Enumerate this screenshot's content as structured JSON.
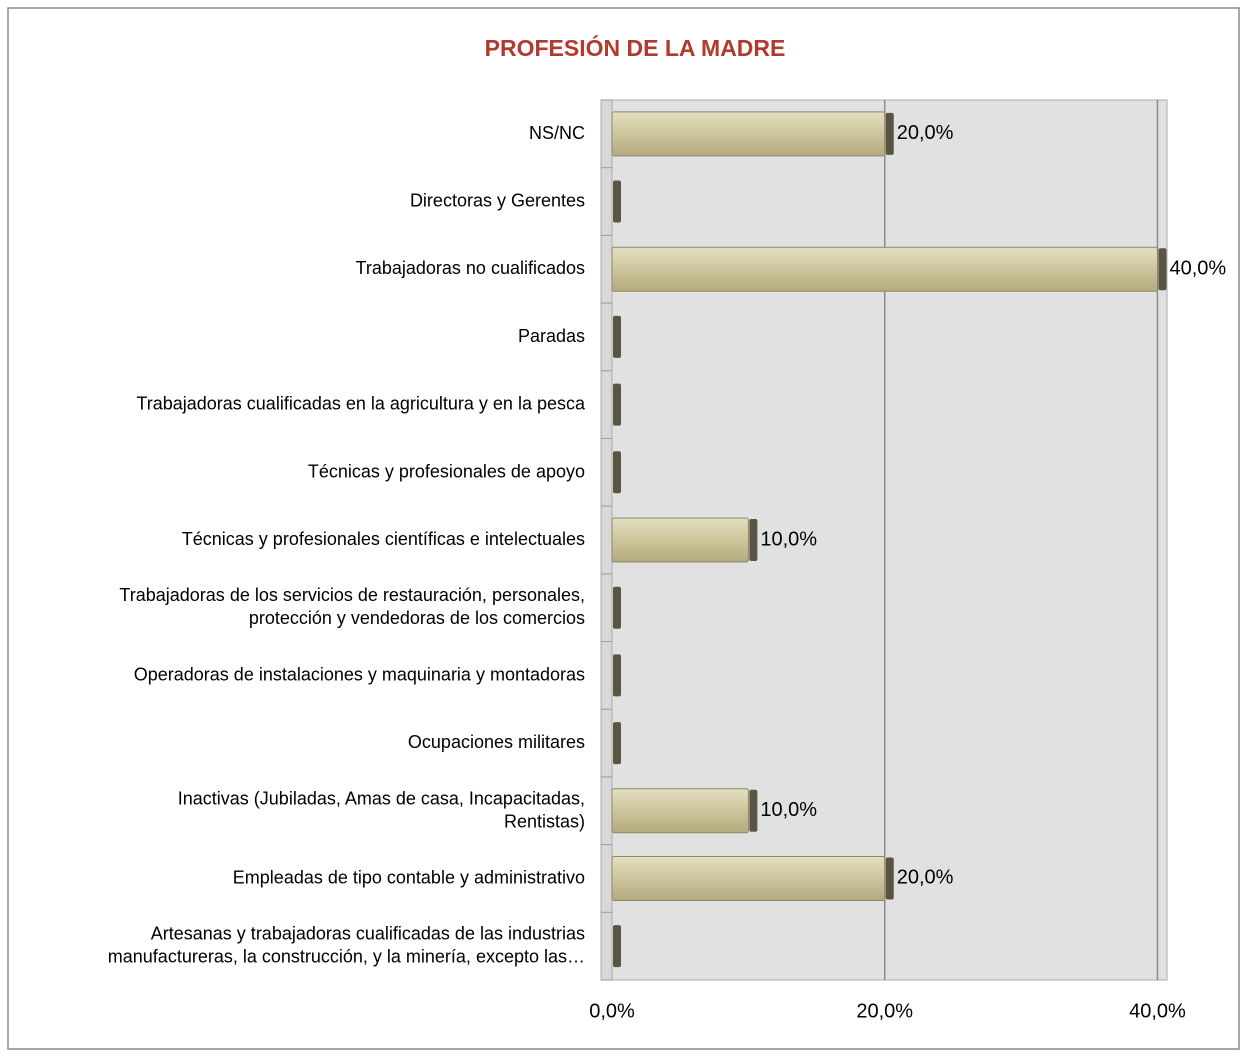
{
  "chart_data": {
    "type": "hbar",
    "title": "PROFESIÓN DE LA MADRE",
    "categories": [
      "NS/NC",
      "Directoras y Gerentes",
      "Trabajadoras no cualificados",
      "Paradas",
      "Trabajadoras cualificadas en la agricultura y en la pesca",
      "Técnicas y profesionales de apoyo",
      "Técnicas y profesionales científicas e intelectuales",
      "Trabajadoras de los servicios de restauración, personales,\nprotección y vendedoras de los comercios",
      "Operadoras de instalaciones y maquinaria y montadoras",
      "Ocupaciones militares",
      "Inactivas (Jubiladas, Amas de casa, Incapacitadas,\nRentistas)",
      "Empleadas de tipo contable y administrativo",
      "Artesanas y trabajadoras cualificadas de las industrias\nmanufactureras, la construcción, y la minería, excepto las…"
    ],
    "values": [
      20,
      0,
      40,
      0,
      0,
      0,
      10,
      0,
      0,
      0,
      10,
      20,
      0
    ],
    "value_labels": [
      "20,0%",
      null,
      "40,0%",
      null,
      null,
      null,
      "10,0%",
      null,
      null,
      null,
      "10,0%",
      "20,0%",
      null
    ],
    "color": "#cdc59c",
    "xlim": [
      0,
      40.7
    ],
    "xticks": [
      {
        "value": 0,
        "label": "0,0%"
      },
      {
        "value": 20,
        "label": "20,0%"
      },
      {
        "value": 40,
        "label": "40,0%"
      }
    ],
    "grid": true
  }
}
